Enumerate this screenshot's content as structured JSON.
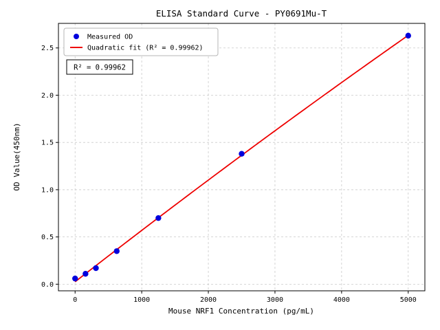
{
  "chart_data": {
    "type": "scatter",
    "title": "ELISA Standard Curve - PY0691Mu-T",
    "xlabel": "Mouse NRF1 Concentration (pg/mL)",
    "ylabel": "OD Value(450nm)",
    "xlim": [
      -250,
      5250
    ],
    "ylim": [
      -0.07,
      2.76
    ],
    "xticks": [
      0,
      1000,
      2000,
      3000,
      4000,
      5000
    ],
    "yticks": [
      0.0,
      0.5,
      1.0,
      1.5,
      2.0,
      2.5
    ],
    "grid": true,
    "legend_position": "upper left",
    "colors": {
      "points": "#0000dd",
      "fit_line": "#ee0000",
      "grid": "#c9c9c9",
      "legend_border": "#b5b5b5",
      "axis": "#000000"
    },
    "series": [
      {
        "name": "Measured OD",
        "type": "scatter",
        "x": [
          0,
          156.25,
          312.5,
          625,
          1250,
          2500,
          5000
        ],
        "y": [
          0.06,
          0.11,
          0.17,
          0.35,
          0.7,
          1.38,
          2.63
        ]
      },
      {
        "name": "Quadratic fit (R² = 0.99962)",
        "type": "quadratic_fit"
      }
    ],
    "annotation": "R² = 0.99962"
  }
}
